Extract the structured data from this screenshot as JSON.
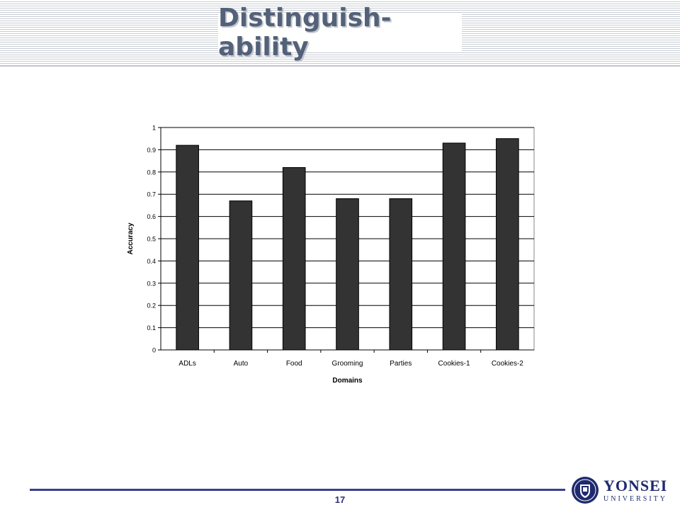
{
  "slide": {
    "title": "Distinguish-ability",
    "page_number": "17"
  },
  "logo": {
    "name": "YONSEI",
    "sub": "UNIVERSITY"
  },
  "chart_data": {
    "type": "bar",
    "title": "",
    "xlabel": "Domains",
    "ylabel": "Accuracy",
    "categories": [
      "ADLs",
      "Auto",
      "Food",
      "Grooming",
      "Parties",
      "Cookies-1",
      "Cookies-2"
    ],
    "values": [
      0.92,
      0.67,
      0.82,
      0.68,
      0.68,
      0.93,
      0.95
    ],
    "ylim": [
      0,
      1
    ],
    "yticks": [
      0,
      0.1,
      0.2,
      0.3,
      0.4,
      0.5,
      0.6,
      0.7,
      0.8,
      0.9,
      1
    ],
    "ytick_labels": [
      "0",
      "0.1",
      "0.2",
      "0.3",
      "0.4",
      "0.5",
      "0.6",
      "0.7",
      "0.8",
      "0.9",
      "1"
    ],
    "grid": true,
    "legend": "none",
    "bar_color": "#333333"
  }
}
